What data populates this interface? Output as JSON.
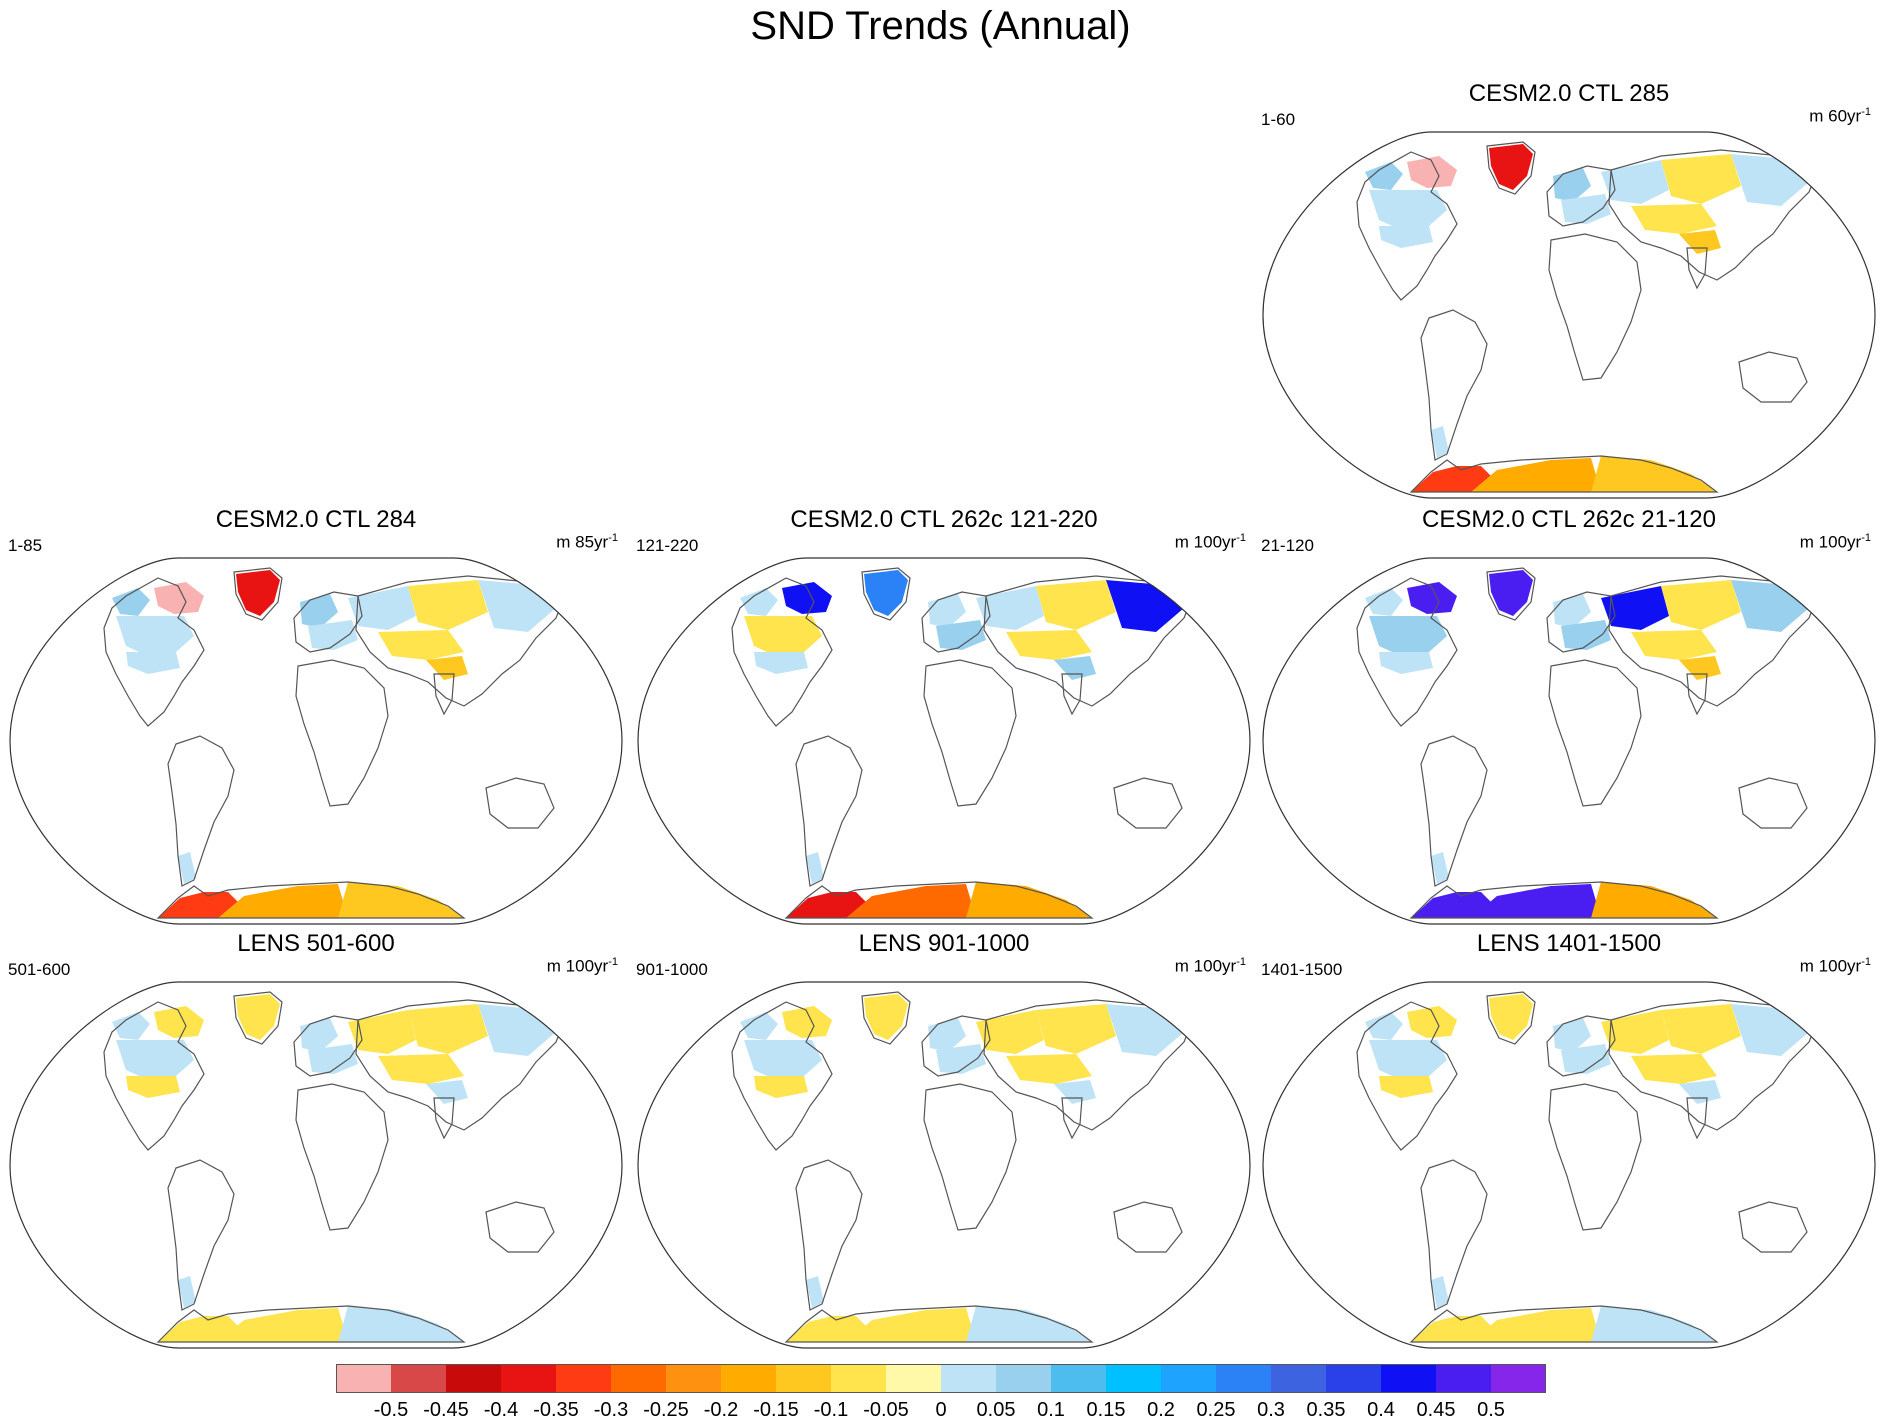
{
  "title": "SND Trends (Annual)",
  "panels": [
    {
      "id": "p1",
      "title": "CESM2.0 CTL 285",
      "left_label": "1-60",
      "unit": "m 60yr",
      "unit_sup": "-1",
      "pattern": "arctic-strong"
    },
    {
      "id": "p2",
      "title": "CESM2.0 CTL 284",
      "left_label": "1-85",
      "unit": "m 85yr",
      "unit_sup": "-1",
      "pattern": "arctic-strong"
    },
    {
      "id": "p3",
      "title": "CESM2.0 CTL 262c 121-220",
      "left_label": "121-220",
      "unit": "m 100yr",
      "unit_sup": "-1",
      "pattern": "greenland-blue"
    },
    {
      "id": "p4",
      "title": "CESM2.0 CTL 262c 21-120",
      "left_label": "21-120",
      "unit": "m 100yr",
      "unit_sup": "-1",
      "pattern": "purple"
    },
    {
      "id": "p5",
      "title": "LENS 501-600",
      "left_label": "501-600",
      "unit": "m 100yr",
      "unit_sup": "-1",
      "pattern": "mild"
    },
    {
      "id": "p6",
      "title": "LENS 901-1000",
      "left_label": "901-1000",
      "unit": "m 100yr",
      "unit_sup": "-1",
      "pattern": "mild"
    },
    {
      "id": "p7",
      "title": "LENS 1401-1500",
      "left_label": "1401-1500",
      "unit": "m 100yr",
      "unit_sup": "-1",
      "pattern": "mild"
    }
  ],
  "chart_data": {
    "type": "heatmap",
    "title": "SND Trends (Annual)",
    "projection": "Robinson global map",
    "variable": "snow depth trend",
    "colorbar": {
      "levels": [
        "-0.5",
        "-0.45",
        "-0.4",
        "-0.35",
        "-0.3",
        "-0.25",
        "-0.2",
        "-0.15",
        "-0.1",
        "-0.05",
        "0",
        "0.05",
        "0.1",
        "0.15",
        "0.2",
        "0.25",
        "0.3",
        "0.35",
        "0.4",
        "0.45",
        "0.5"
      ],
      "colors": [
        "#f8b2b2",
        "#d94848",
        "#c80a0a",
        "#e81313",
        "#ff3b14",
        "#ff6a00",
        "#ff9110",
        "#ffab00",
        "#ffc820",
        "#ffe44d",
        "#fff9a8",
        "#bfe3f6",
        "#98d0ee",
        "#4dbcef",
        "#00c0ff",
        "#1ea3ff",
        "#2b82f6",
        "#3d63e0",
        "#2a40e8",
        "#1010f5",
        "#4a1ef0",
        "#8526ea"
      ]
    }
  }
}
